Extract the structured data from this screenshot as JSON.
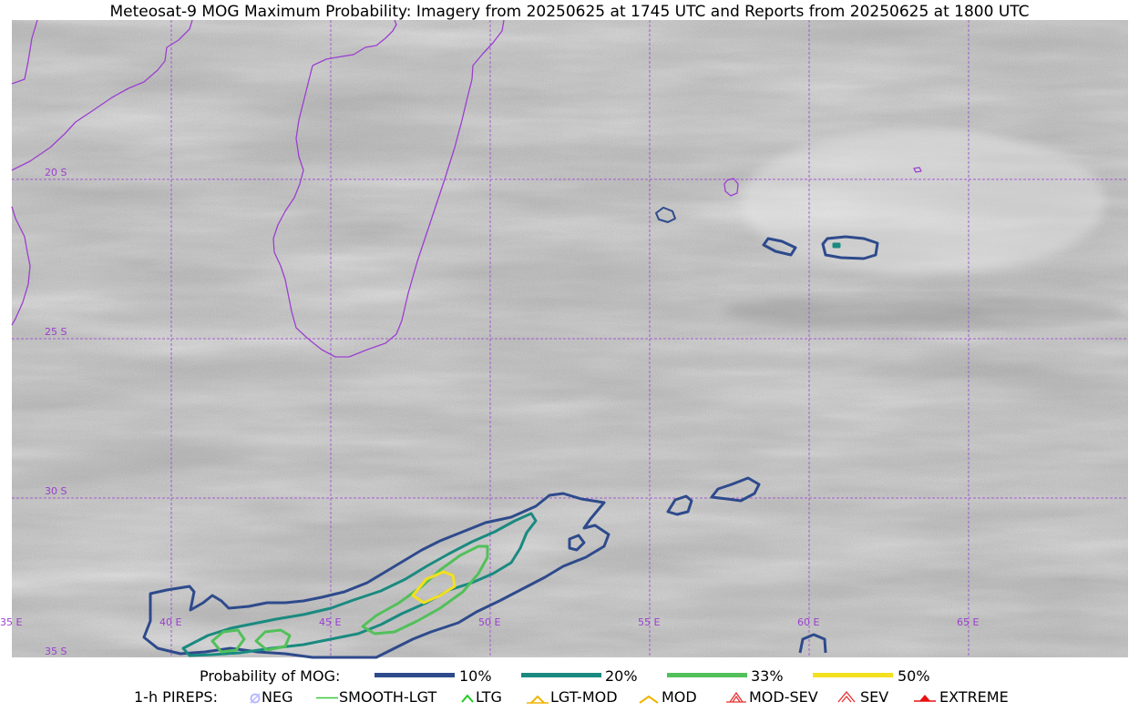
{
  "title": "Meteosat-9 MOG Maximum Probability: Imagery from 20250625 at 1745 UTC and Reports from 20250625 at 1800 UTC",
  "map": {
    "lat_labels": [
      "20 S",
      "25 S",
      "30 S",
      "35 S"
    ],
    "lon_labels": [
      "35 E",
      "40 E",
      "45 E",
      "50 E",
      "55 E",
      "60 E",
      "65 E"
    ],
    "colors": {
      "coastline": "#9b3fd0",
      "grid": "#a050d0",
      "label": "#9a3fcf",
      "p10": "#2e4a8c",
      "p20": "#1a8a80",
      "p33": "#52c05a",
      "p50": "#f3e01e"
    }
  },
  "legend": {
    "prob_title": "Probability of MOG:",
    "prob_items": [
      {
        "label": "10%",
        "color": "#2e4a8c"
      },
      {
        "label": "20%",
        "color": "#1a8a80"
      },
      {
        "label": "33%",
        "color": "#52c05a"
      },
      {
        "label": "50%",
        "color": "#f3e01e"
      }
    ],
    "pirep_title": "1-h PIREPS:",
    "pirep_items": [
      {
        "label": "NEG",
        "icon": "neg-icon",
        "color": "#b9b9ff"
      },
      {
        "label": "SMOOTH-LGT",
        "icon": "smooth-lgt-icon",
        "color": "#3cc83c"
      },
      {
        "label": "LTG",
        "icon": "ltg-icon",
        "color": "#22cc22"
      },
      {
        "label": "LGT-MOD",
        "icon": "lgt-mod-icon",
        "color": "#f0b400"
      },
      {
        "label": "MOD",
        "icon": "mod-icon",
        "color": "#f0b400"
      },
      {
        "label": "MOD-SEV",
        "icon": "mod-sev-icon",
        "color": "#e83030"
      },
      {
        "label": "SEV",
        "icon": "sev-icon",
        "color": "#e83030"
      },
      {
        "label": "EXTREME",
        "icon": "extreme-icon",
        "color": "#e81010"
      }
    ]
  }
}
